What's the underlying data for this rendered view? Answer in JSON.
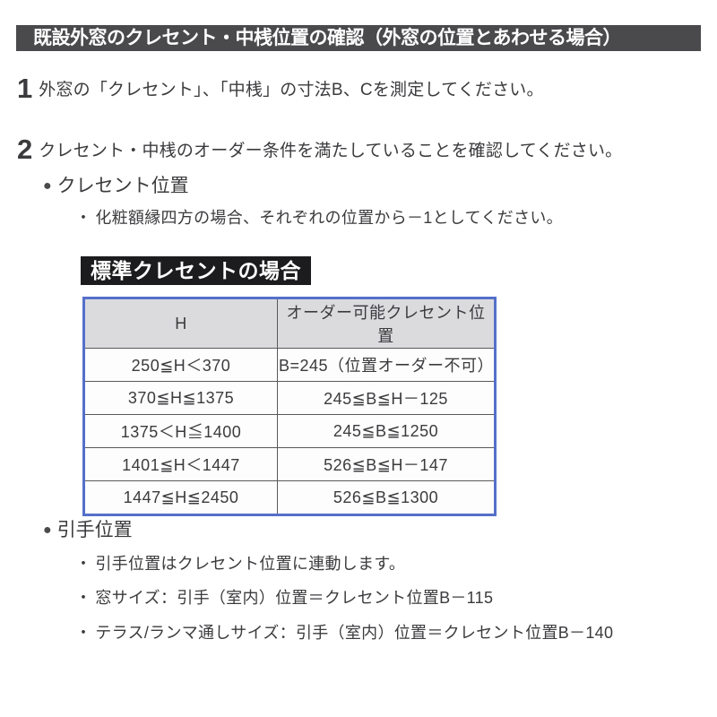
{
  "banner": {
    "text": "既設外窓のクレセント・中桟位置の確認（外窓の位置とあわせる場合）"
  },
  "steps": [
    {
      "number": "1",
      "text": "外窓の「クレセント」、「中桟」の寸法B、Cを測定してください。"
    },
    {
      "number": "2",
      "text": "クレセント・中桟のオーダー条件を満たしていることを確認してください。"
    }
  ],
  "glyphs": {
    "section_bullet": "●",
    "item_bullet": "・"
  },
  "crescent_section": {
    "heading": "クレセント位置",
    "note": "化粧額縁四方の場合、それぞれの位置から－1としてください。",
    "table_label": "標準クレセントの場合",
    "table": {
      "headers": [
        "H",
        "オーダー可能クレセント位置"
      ],
      "rows": [
        [
          "250≦H＜370",
          "B=245（位置オーダー不可）"
        ],
        [
          "370≦H≦1375",
          "245≦B≦H－125"
        ],
        [
          "1375＜H≦1400",
          "245≦B≦1250"
        ],
        [
          "1401≦H＜1447",
          "526≦B≦H－147"
        ],
        [
          "1447≦H≦2450",
          "526≦B≦1300"
        ]
      ]
    }
  },
  "handle_section": {
    "heading": "引手位置",
    "notes": [
      "引手位置はクレセント位置に連動します。",
      "窓サイズ：引手（室内）位置＝クレセント位置B－115",
      "テラス/ランマ通しサイズ：引手（室内）位置＝クレセント位置B－140"
    ]
  },
  "colors": {
    "banner_bg": "#4a4a4d",
    "label_bg": "#1c1c1e",
    "table_border": "#5570ca",
    "table_header_bg": "#dbdbde",
    "text": "#3b3b3e"
  }
}
